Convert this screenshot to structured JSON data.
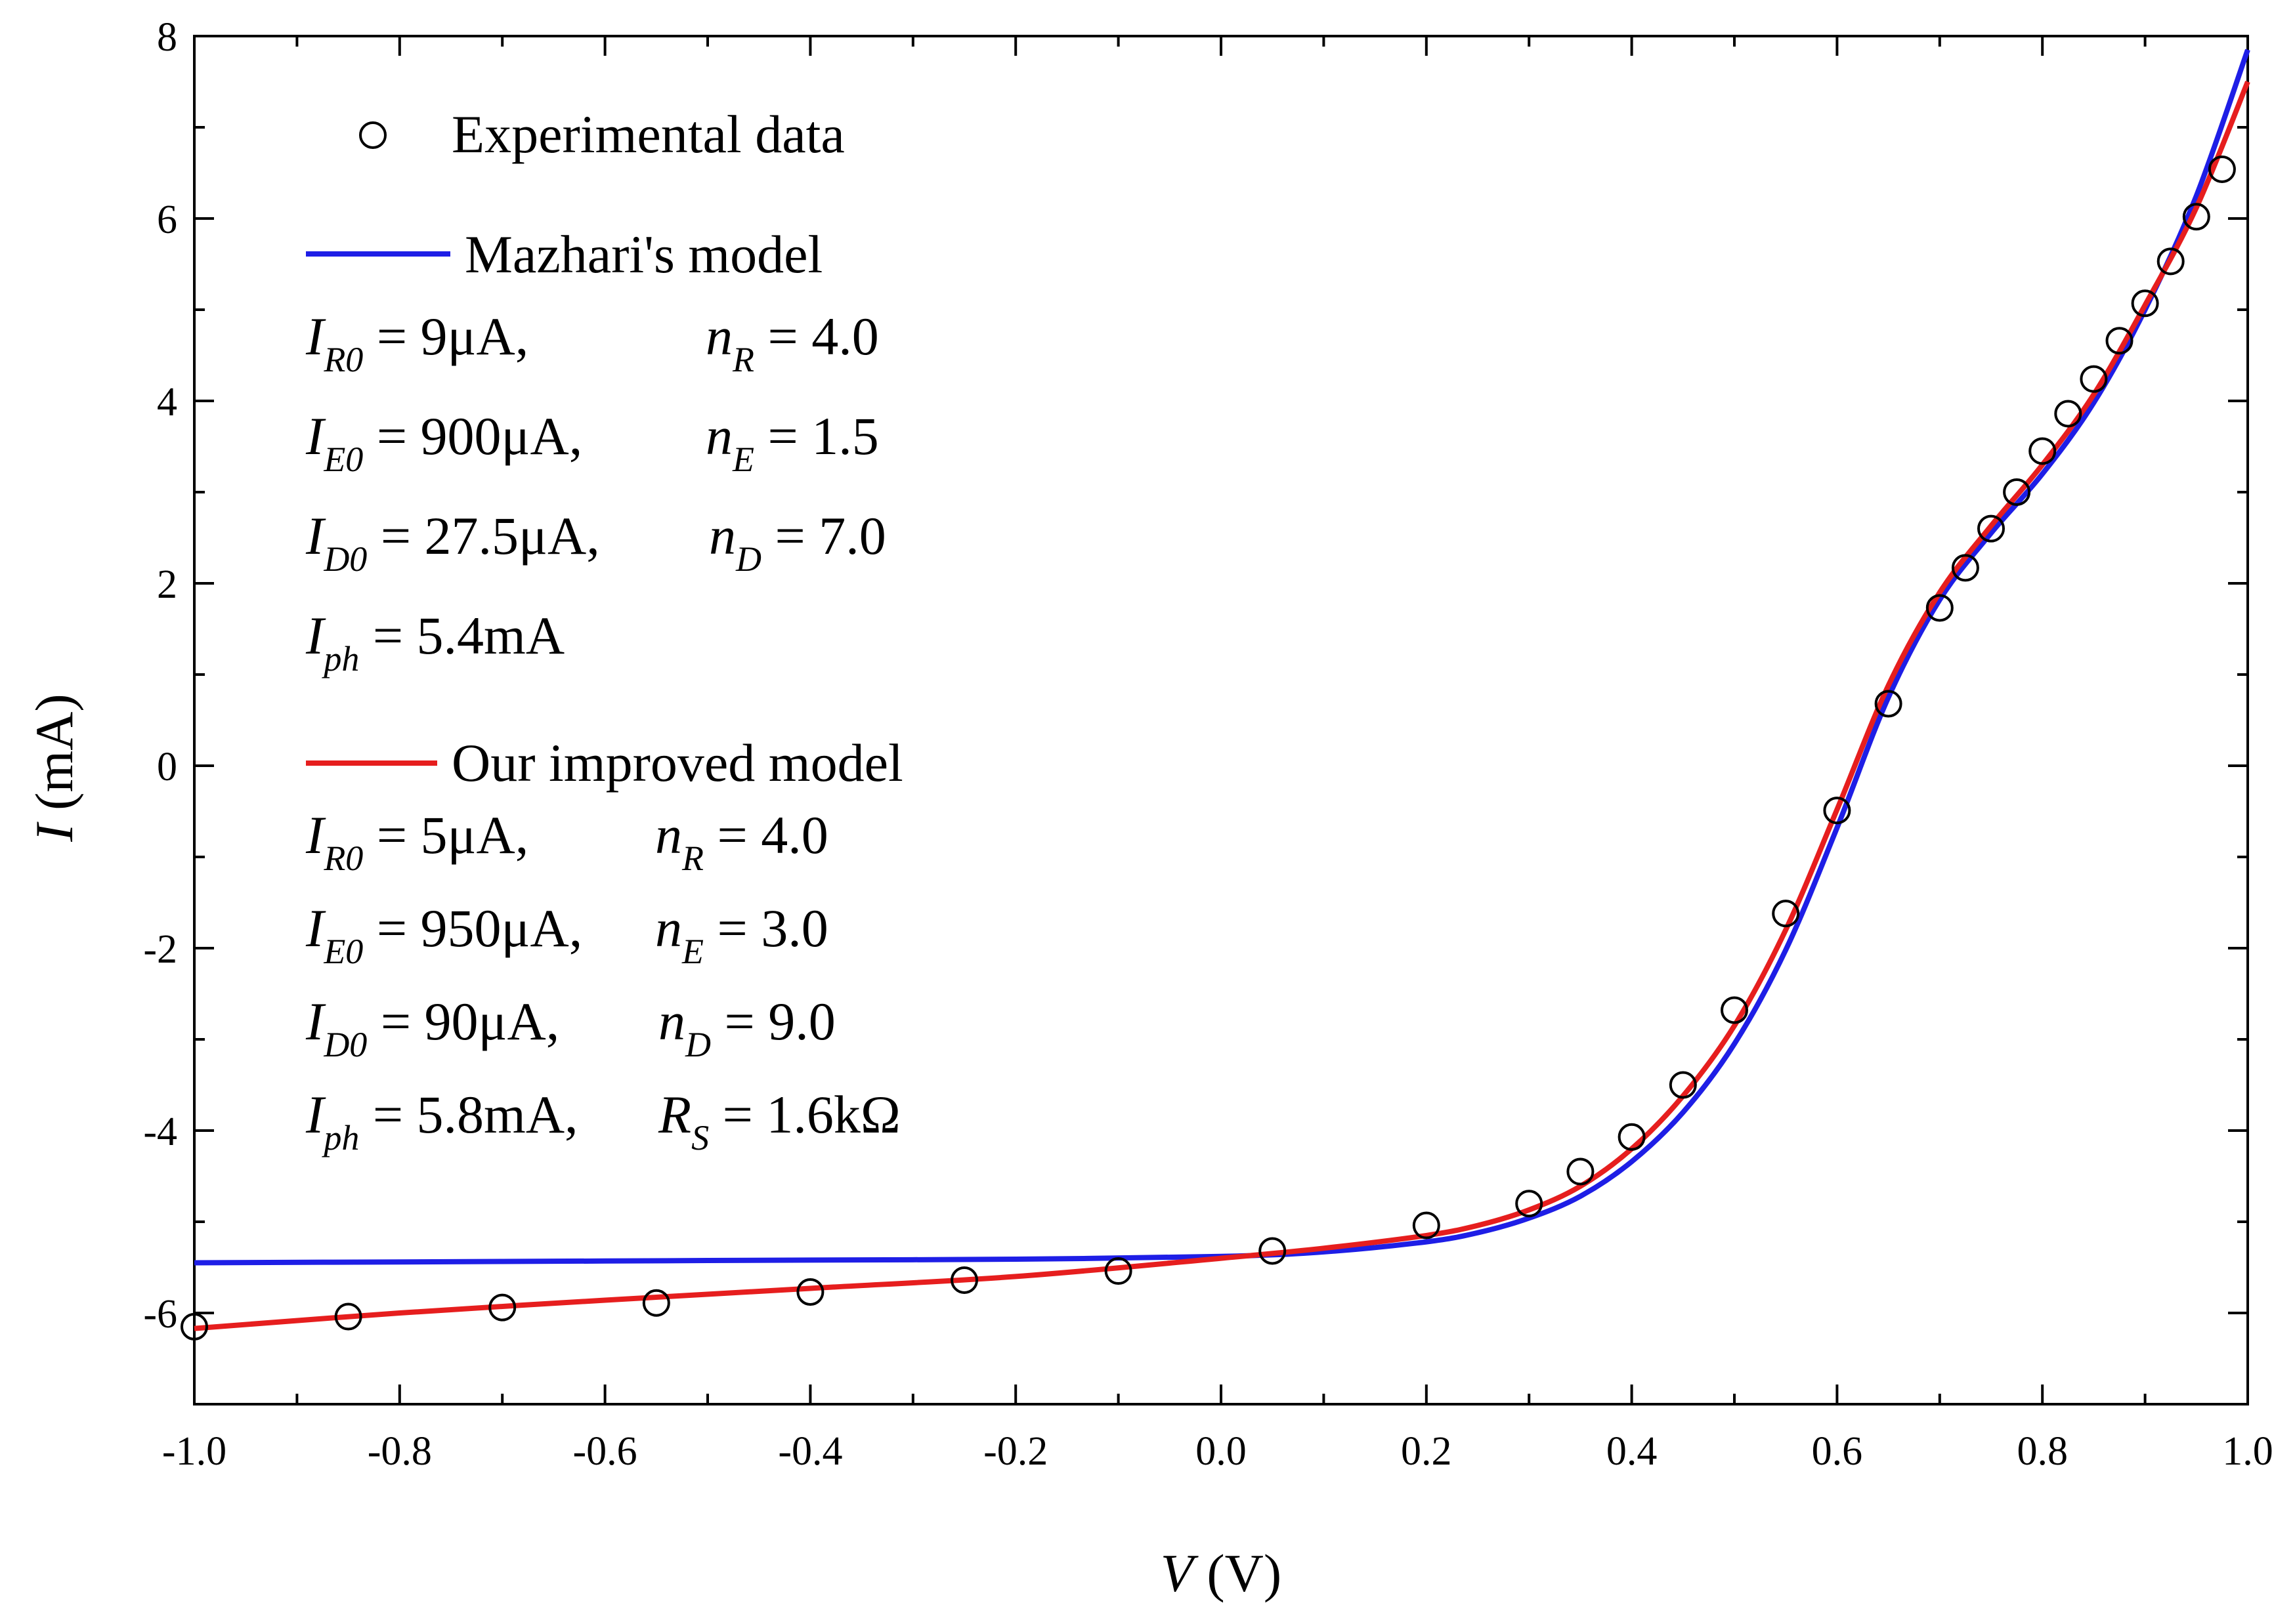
{
  "chart_data": {
    "type": "line",
    "xlabel": {
      "symbol": "V",
      "unit": " (V)"
    },
    "ylabel": {
      "symbol": "I",
      "unit": " (mA)"
    },
    "xlim": [
      -1.0,
      1.0
    ],
    "ylim": [
      -7,
      8
    ],
    "x_ticks": [
      -1.0,
      -0.8,
      -0.6,
      -0.4,
      -0.2,
      0.0,
      0.2,
      0.4,
      0.6,
      0.8,
      1.0
    ],
    "x_tick_labels": [
      "-1.0",
      "-0.8",
      "-0.6",
      "-0.4",
      "-0.2",
      "0.0",
      "0.2",
      "0.4",
      "0.6",
      "0.8",
      "1.0"
    ],
    "y_ticks": [
      -6,
      -4,
      -2,
      0,
      2,
      4,
      6,
      8
    ],
    "y_tick_labels": [
      "-6",
      "-4",
      "-2",
      "0",
      "2",
      "4",
      "6",
      "8"
    ],
    "grid": false,
    "legend_position": "top-left",
    "series": [
      {
        "name": "Experimental data",
        "kind": "scatter",
        "marker": "open-circle",
        "color": "#000000",
        "x": [
          -1.0,
          -0.85,
          -0.7,
          -0.55,
          -0.4,
          -0.25,
          -0.1,
          0.05,
          0.2,
          0.3,
          0.35,
          0.4,
          0.45,
          0.5,
          0.55,
          0.6,
          0.65,
          0.7,
          0.725,
          0.75,
          0.775,
          0.8,
          0.825,
          0.85,
          0.875,
          0.9,
          0.925,
          0.95,
          0.975
        ],
        "y": [
          -6.15,
          -6.04,
          -5.94,
          -5.89,
          -5.77,
          -5.64,
          -5.54,
          -5.32,
          -5.04,
          -4.8,
          -4.45,
          -4.07,
          -3.5,
          -2.68,
          -1.62,
          -0.49,
          0.68,
          1.73,
          2.17,
          2.6,
          3.0,
          3.45,
          3.86,
          4.24,
          4.66,
          5.07,
          5.53,
          6.02,
          6.54
        ]
      },
      {
        "name": "Mazhari's model",
        "kind": "line",
        "color": "#1e1ee6",
        "x": [
          -1.0,
          -0.8,
          -0.6,
          -0.4,
          -0.2,
          0.0,
          0.1,
          0.2,
          0.25,
          0.3,
          0.35,
          0.4,
          0.45,
          0.5,
          0.55,
          0.6,
          0.65,
          0.7,
          0.75,
          0.8,
          0.85,
          0.9,
          0.95,
          1.0
        ],
        "y": [
          -5.45,
          -5.44,
          -5.43,
          -5.42,
          -5.41,
          -5.38,
          -5.33,
          -5.22,
          -5.12,
          -4.96,
          -4.72,
          -4.34,
          -3.8,
          -3.05,
          -2.02,
          -0.68,
          0.75,
          1.82,
          2.55,
          3.2,
          3.98,
          5.0,
          6.25,
          7.85
        ]
      },
      {
        "name": "Our improved model",
        "kind": "line",
        "color": "#e61e1e",
        "x": [
          -1.0,
          -0.8,
          -0.6,
          -0.4,
          -0.2,
          0.0,
          0.1,
          0.2,
          0.25,
          0.3,
          0.35,
          0.4,
          0.45,
          0.5,
          0.55,
          0.6,
          0.65,
          0.7,
          0.75,
          0.8,
          0.85,
          0.9,
          0.95,
          1.0
        ],
        "y": [
          -6.17,
          -6.0,
          -5.86,
          -5.73,
          -5.6,
          -5.4,
          -5.29,
          -5.15,
          -5.04,
          -4.87,
          -4.61,
          -4.2,
          -3.62,
          -2.85,
          -1.8,
          -0.48,
          0.88,
          1.9,
          2.63,
          3.3,
          4.07,
          5.05,
          6.12,
          7.5
        ]
      }
    ],
    "annotations": {
      "mazhari_params": [
        [
          {
            "main": "I",
            "sub": "R0",
            "text": " = 9μA,"
          },
          {
            "main": "n",
            "sub": "R",
            "text": " = 4.0"
          }
        ],
        [
          {
            "main": "I",
            "sub": "E0",
            "text": " = 900μA,"
          },
          {
            "main": "n",
            "sub": "E",
            "text": " = 1.5"
          }
        ],
        [
          {
            "main": "I",
            "sub": "D0",
            "text": " = 27.5μA,"
          },
          {
            "main": "n",
            "sub": "D",
            "text": " = 7.0"
          }
        ],
        [
          {
            "main": "I",
            "sub": "ph",
            "text": " = 5.4mA"
          }
        ]
      ],
      "improved_params": [
        [
          {
            "main": "I",
            "sub": "R0",
            "text": " = 5μA,"
          },
          {
            "main": "n",
            "sub": "R",
            "text": " = 4.0"
          }
        ],
        [
          {
            "main": "I",
            "sub": "E0",
            "text": " = 950μA,"
          },
          {
            "main": "n",
            "sub": "E",
            "text": " = 3.0"
          }
        ],
        [
          {
            "main": "I",
            "sub": "D0",
            "text": " = 90μA,"
          },
          {
            "main": "n",
            "sub": "D",
            "text": " = 9.0"
          }
        ],
        [
          {
            "main": "I",
            "sub": "ph",
            "text": " = 5.8mA,"
          },
          {
            "main": "R",
            "sub": "S",
            "text": " = 1.6kΩ"
          }
        ]
      ]
    }
  }
}
